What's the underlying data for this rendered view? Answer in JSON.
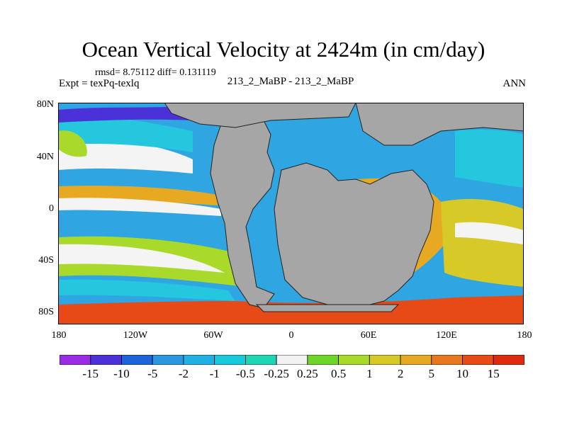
{
  "header": {
    "title": "Ocean Vertical Velocity at 2424m (in cm/day)",
    "stats": "rmsd= 8.75112 diff= 0.131119",
    "experiment": "Expt = texPq-texlq",
    "comparison": "213_2_MaBP - 213_2_MaBP",
    "season": "ANN"
  },
  "map": {
    "lat_labels": [
      "80N",
      "40N",
      "0",
      "40S",
      "80S"
    ],
    "lon_labels": [
      "180",
      "120W",
      "60W",
      "0",
      "60E",
      "120E",
      "180"
    ],
    "land_color": "#a6a6a6"
  },
  "colorbar": {
    "labels": [
      "-15",
      "-10",
      "-5",
      "-2",
      "-1",
      "-0.5",
      "-0.25",
      "0.25",
      "0.5",
      "1",
      "2",
      "5",
      "10",
      "15"
    ],
    "colors": [
      "#9a2ce6",
      "#4b32d8",
      "#1c63dc",
      "#2d96e0",
      "#20b0e4",
      "#19c9dc",
      "#1fd6b2",
      "#f2f2f2",
      "#6fd629",
      "#a8da2a",
      "#d6c928",
      "#e8a922",
      "#e8781e",
      "#e84a17",
      "#df2a10"
    ]
  }
}
